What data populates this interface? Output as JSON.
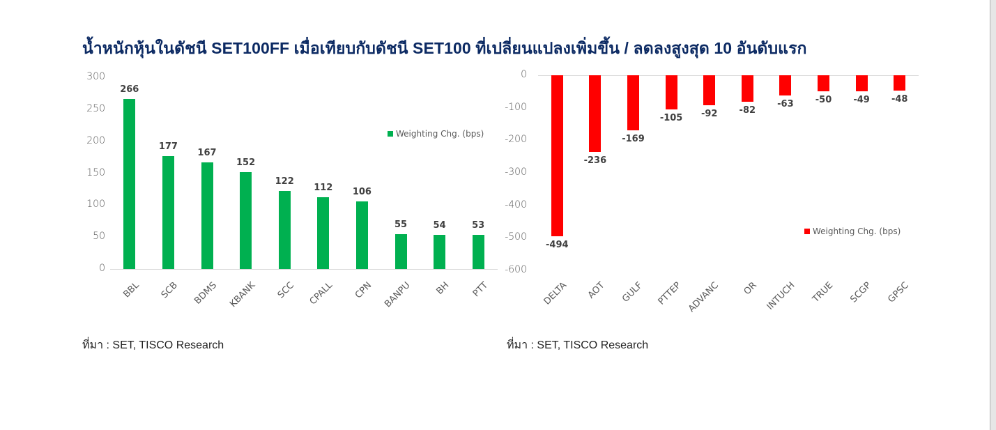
{
  "page": {
    "title": "น้ำหนักหุ้นในดัชนี SET100FF เมื่อเทียบกับดัชนี SET100 ที่เปลี่ยนแปลงเพิ่มขึ้น / ลดลงสูงสุด 10 อันดับแรก",
    "colors": {
      "title": "#0c2a63",
      "positive": "#00b050",
      "negative": "#ff0000"
    }
  },
  "left": {
    "legend": "Weighting Chg. (bps)",
    "source": "ที่มา : SET, TISCO Research",
    "yticks": [
      "300",
      "250",
      "200",
      "150",
      "100",
      "50",
      "0"
    ]
  },
  "right": {
    "legend": "Weighting Chg. (bps)",
    "source": "ที่มา : SET, TISCO Research",
    "yticks": [
      "0",
      "-100",
      "-200",
      "-300",
      "-400",
      "-500",
      "-600"
    ]
  },
  "chart_data": [
    {
      "type": "bar",
      "title": "น้ำหนักหุ้นในดัชนี SET100FF เมื่อเทียบกับดัชนี SET100 ที่เปลี่ยนแปลงเพิ่มขึ้น (10 อันดับแรก)",
      "categories": [
        "BBL",
        "SCB",
        "BDMS",
        "KBANK",
        "SCC",
        "CPALL",
        "CPN",
        "BANPU",
        "BH",
        "PTT"
      ],
      "series": [
        {
          "name": "Weighting Chg. (bps)",
          "values": [
            266,
            177,
            167,
            152,
            122,
            112,
            106,
            55,
            54,
            53
          ],
          "color": "#00b050"
        }
      ],
      "xlabel": "",
      "ylabel": "",
      "ylim": [
        0,
        300
      ],
      "yticks": [
        0,
        50,
        100,
        150,
        200,
        250,
        300
      ],
      "grid": false,
      "legend_position": "upper right",
      "data_labels": true
    },
    {
      "type": "bar",
      "title": "น้ำหนักหุ้นในดัชนี SET100FF เมื่อเทียบกับดัชนี SET100 ที่เปลี่ยนแปลงลดลง (10 อันดับแรก)",
      "categories": [
        "DELTA",
        "AOT",
        "GULF",
        "PTTEP",
        "ADVANC",
        "OR",
        "INTUCH",
        "TRUE",
        "SCGP",
        "GPSC"
      ],
      "series": [
        {
          "name": "Weighting Chg. (bps)",
          "values": [
            -494,
            -236,
            -169,
            -105,
            -92,
            -82,
            -63,
            -50,
            -49,
            -48
          ],
          "color": "#ff0000"
        }
      ],
      "xlabel": "",
      "ylabel": "",
      "ylim": [
        -600,
        0
      ],
      "yticks": [
        -600,
        -500,
        -400,
        -300,
        -200,
        -100,
        0
      ],
      "grid": false,
      "legend_position": "lower right",
      "data_labels": true
    }
  ]
}
